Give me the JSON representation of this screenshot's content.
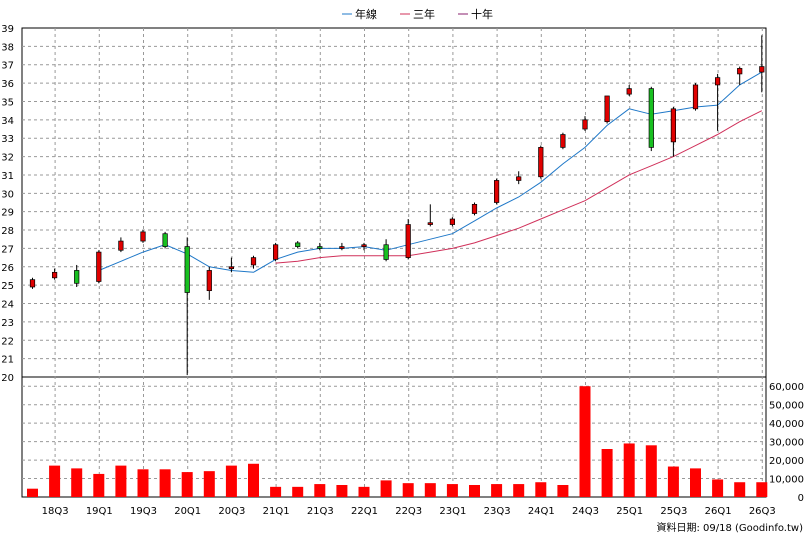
{
  "legend": [
    {
      "label": "年線",
      "color": "#1f78c8"
    },
    {
      "label": "三年",
      "color": "#d0305a"
    },
    {
      "label": "十年",
      "color": "#8a1f6e"
    }
  ],
  "footer": "資料日期: 09/18 (Goodinfo.tw)",
  "colors": {
    "up": "#e00000",
    "down": "#18c020",
    "volume": "#ff0000",
    "grid": "#999999"
  },
  "chart_data": [
    {
      "type": "candlestick",
      "title": "",
      "ylim": [
        20,
        39
      ],
      "yticks": [
        20,
        21,
        22,
        23,
        24,
        25,
        26,
        27,
        28,
        29,
        30,
        31,
        32,
        33,
        34,
        35,
        36,
        37,
        38,
        39
      ],
      "xticks": [
        "18Q3",
        "19Q1",
        "19Q3",
        "20Q1",
        "20Q3",
        "21Q1",
        "21Q3",
        "22Q1",
        "22Q3",
        "23Q1",
        "23Q3",
        "24Q1",
        "24Q3",
        "25Q1",
        "25Q3",
        "26Q1",
        "26Q3"
      ],
      "grid": true,
      "candles": [
        {
          "q": "18Q2",
          "o": 24.9,
          "h": 25.4,
          "l": 24.8,
          "c": 25.3
        },
        {
          "q": "18Q3",
          "o": 25.4,
          "h": 25.9,
          "l": 25.3,
          "c": 25.7
        },
        {
          "q": "18Q4",
          "o": 25.8,
          "h": 26.1,
          "l": 24.9,
          "c": 25.1
        },
        {
          "q": "19Q1",
          "o": 25.2,
          "h": 26.9,
          "l": 25.1,
          "c": 26.8
        },
        {
          "q": "19Q2",
          "o": 26.9,
          "h": 27.6,
          "l": 26.8,
          "c": 27.4
        },
        {
          "q": "19Q3",
          "o": 27.4,
          "h": 28.0,
          "l": 27.3,
          "c": 27.9
        },
        {
          "q": "19Q4",
          "o": 27.8,
          "h": 27.9,
          "l": 27.0,
          "c": 27.1
        },
        {
          "q": "20Q1",
          "o": 27.1,
          "h": 27.6,
          "l": 20.1,
          "c": 24.6
        },
        {
          "q": "20Q2",
          "o": 24.7,
          "h": 26.0,
          "l": 24.2,
          "c": 25.8
        },
        {
          "q": "20Q3",
          "o": 25.9,
          "h": 26.5,
          "l": 25.7,
          "c": 26.0
        },
        {
          "q": "20Q4",
          "o": 26.1,
          "h": 26.6,
          "l": 25.9,
          "c": 26.5
        },
        {
          "q": "21Q1",
          "o": 26.4,
          "h": 27.3,
          "l": 26.3,
          "c": 27.2
        },
        {
          "q": "21Q2",
          "o": 27.3,
          "h": 27.4,
          "l": 27.0,
          "c": 27.1
        },
        {
          "q": "21Q3",
          "o": 27.1,
          "h": 27.3,
          "l": 26.9,
          "c": 27.0
        },
        {
          "q": "21Q4",
          "o": 27.0,
          "h": 27.3,
          "l": 26.9,
          "c": 27.1
        },
        {
          "q": "22Q1",
          "o": 27.1,
          "h": 27.3,
          "l": 26.9,
          "c": 27.2
        },
        {
          "q": "22Q2",
          "o": 27.2,
          "h": 27.5,
          "l": 26.3,
          "c": 26.4
        },
        {
          "q": "22Q3",
          "o": 26.5,
          "h": 28.6,
          "l": 26.4,
          "c": 28.3
        },
        {
          "q": "22Q4",
          "o": 28.3,
          "h": 29.4,
          "l": 28.2,
          "c": 28.4
        },
        {
          "q": "23Q1",
          "o": 28.3,
          "h": 28.7,
          "l": 28.2,
          "c": 28.6
        },
        {
          "q": "23Q2",
          "o": 28.9,
          "h": 29.5,
          "l": 28.8,
          "c": 29.4
        },
        {
          "q": "23Q3",
          "o": 29.5,
          "h": 30.8,
          "l": 29.4,
          "c": 30.7
        },
        {
          "q": "23Q4",
          "o": 30.7,
          "h": 31.2,
          "l": 30.5,
          "c": 30.9
        },
        {
          "q": "24Q1",
          "o": 30.9,
          "h": 32.6,
          "l": 30.8,
          "c": 32.5
        },
        {
          "q": "24Q2",
          "o": 32.5,
          "h": 33.3,
          "l": 32.4,
          "c": 33.2
        },
        {
          "q": "24Q3",
          "o": 33.5,
          "h": 34.2,
          "l": 33.4,
          "c": 34.0
        },
        {
          "q": "24Q4",
          "o": 33.9,
          "h": 35.3,
          "l": 33.8,
          "c": 35.3
        },
        {
          "q": "25Q1",
          "o": 35.4,
          "h": 35.9,
          "l": 35.3,
          "c": 35.7
        },
        {
          "q": "25Q2",
          "o": 35.7,
          "h": 35.8,
          "l": 32.3,
          "c": 32.5
        },
        {
          "q": "25Q3",
          "o": 32.8,
          "h": 34.7,
          "l": 32.0,
          "c": 34.6
        },
        {
          "q": "25Q4",
          "o": 34.6,
          "h": 36.0,
          "l": 34.5,
          "c": 35.9
        },
        {
          "q": "26Q1",
          "o": 35.9,
          "h": 36.5,
          "l": 33.4,
          "c": 36.3
        },
        {
          "q": "26Q2",
          "o": 36.5,
          "h": 36.9,
          "l": 35.9,
          "c": 36.8
        },
        {
          "q": "26Q3",
          "o": 36.6,
          "h": 38.6,
          "l": 35.5,
          "c": 36.9
        }
      ],
      "series": [
        {
          "name": "年線",
          "values": [
            null,
            null,
            null,
            25.8,
            26.3,
            26.8,
            27.2,
            26.7,
            26.0,
            25.8,
            25.7,
            26.4,
            26.8,
            27.0,
            27.0,
            27.1,
            26.9,
            27.2,
            27.5,
            27.8,
            28.5,
            29.2,
            29.8,
            30.6,
            31.6,
            32.5,
            33.7,
            34.6,
            34.3,
            34.5,
            34.7,
            34.8,
            35.9,
            36.6
          ]
        },
        {
          "name": "三年",
          "values": [
            null,
            null,
            null,
            null,
            null,
            null,
            null,
            null,
            null,
            null,
            null,
            26.2,
            26.3,
            26.5,
            26.6,
            26.6,
            26.6,
            26.6,
            26.8,
            27.0,
            27.3,
            27.7,
            28.1,
            28.6,
            29.1,
            29.6,
            30.3,
            31.0,
            31.5,
            32.0,
            32.6,
            33.2,
            33.9,
            34.5
          ]
        },
        {
          "name": "十年",
          "values": []
        }
      ]
    },
    {
      "type": "bar",
      "title": "",
      "ylim": [
        0,
        65000
      ],
      "yticks": [
        0,
        10000,
        20000,
        30000,
        40000,
        50000,
        60000
      ],
      "ytick_labels": [
        "0",
        "10,000",
        "20,000",
        "30,000",
        "40,000",
        "50,000",
        "60,000"
      ],
      "values": [
        4500,
        17000,
        15500,
        12500,
        17000,
        15000,
        15000,
        13500,
        14000,
        17000,
        18000,
        5500,
        5500,
        7000,
        6500,
        5500,
        9000,
        7500,
        7500,
        7000,
        6500,
        7000,
        7000,
        8000,
        6500,
        60000,
        26000,
        29000,
        28000,
        16500,
        15500,
        9500,
        8000,
        8000
      ]
    }
  ]
}
